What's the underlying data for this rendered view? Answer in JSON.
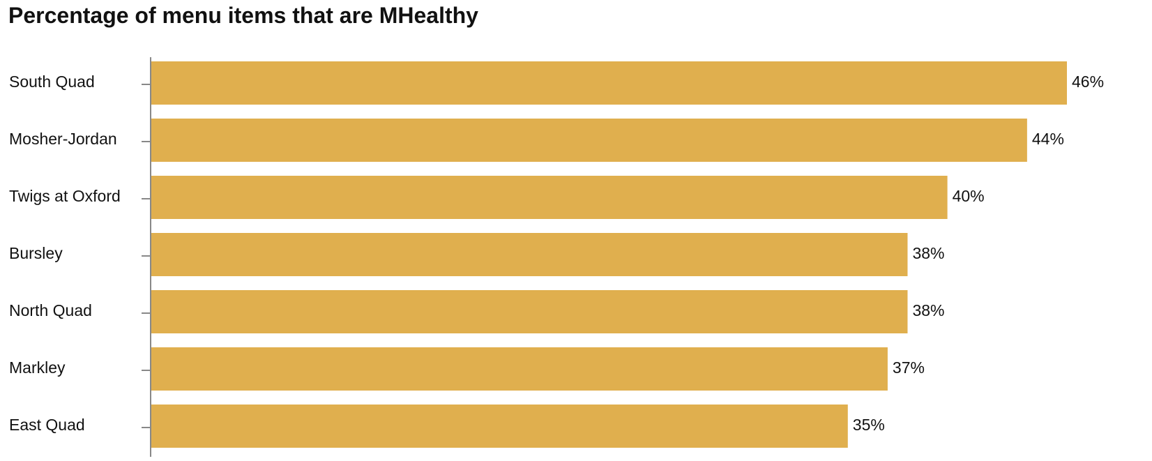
{
  "chart_data": {
    "type": "bar",
    "orientation": "horizontal",
    "title": "Percentage of menu items that are MHealthy",
    "xlabel": "",
    "ylabel": "",
    "categories": [
      "South Quad",
      "Mosher-Jordan",
      "Twigs at Oxford",
      "Bursley",
      "North Quad",
      "Markley",
      "East Quad"
    ],
    "values": [
      46,
      44,
      40,
      38,
      38,
      37,
      35
    ],
    "value_labels": [
      "46%",
      "44%",
      "40%",
      "38%",
      "38%",
      "37%",
      "35%"
    ],
    "value_format": "percent",
    "xlim": [
      0,
      46
    ],
    "grid": false,
    "legend": "none",
    "colors": {
      "bar": "#E0AF4E",
      "axis": "#888888",
      "text": "#111111"
    }
  }
}
